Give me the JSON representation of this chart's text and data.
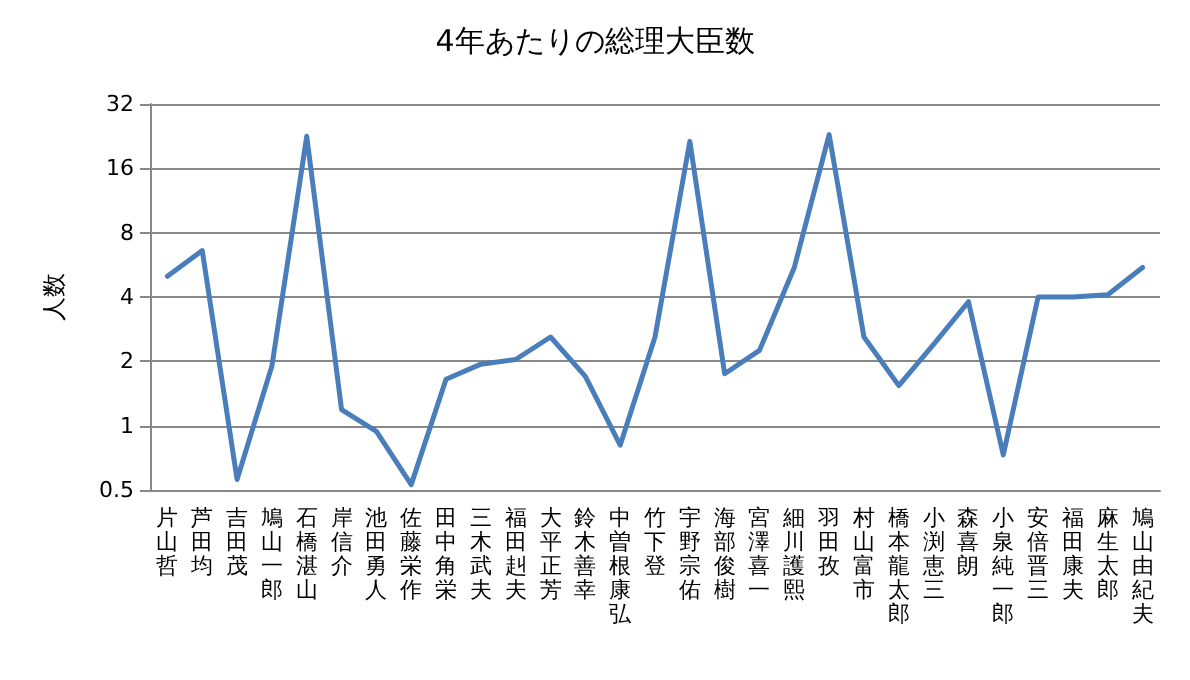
{
  "chart_data": {
    "type": "line",
    "title": "4年あたりの総理大臣数",
    "ylabel": "人数",
    "categories": [
      "片山哲",
      "芦田均",
      "吉田茂",
      "鳩山一郎",
      "石橋湛山",
      "岸信介",
      "池田勇人",
      "佐藤栄作",
      "田中角栄",
      "三木武夫",
      "福田赳夫",
      "大平正芳",
      "鈴木善幸",
      "中曽根康弘",
      "竹下登",
      "宇野宗佑",
      "海部俊樹",
      "宮澤喜一",
      "細川護熙",
      "羽田孜",
      "村山富市",
      "橋本龍太郎",
      "小渕恵三",
      "森喜朗",
      "小泉純一郎",
      "安倍晋三",
      "福田康夫",
      "麻生太郎",
      "鳩山由紀夫"
    ],
    "series": [
      {
        "color": "#4a7ebb",
        "values": [
          5,
          6.6,
          0.56,
          1.9,
          22.6,
          1.19,
          0.94,
          0.53,
          1.65,
          1.94,
          2.04,
          2.6,
          1.7,
          0.81,
          2.6,
          21.4,
          1.75,
          2.25,
          5.5,
          23,
          2.6,
          1.54,
          2.4,
          3.8,
          0.73,
          4,
          4,
          4.1,
          5.5
        ]
      }
    ],
    "log": "y",
    "ylim": [
      0.5,
      32
    ],
    "yticks": [
      0.5,
      1,
      2,
      4,
      8,
      16,
      32
    ],
    "grid": "y",
    "marker": "none",
    "line_style": "solid"
  }
}
